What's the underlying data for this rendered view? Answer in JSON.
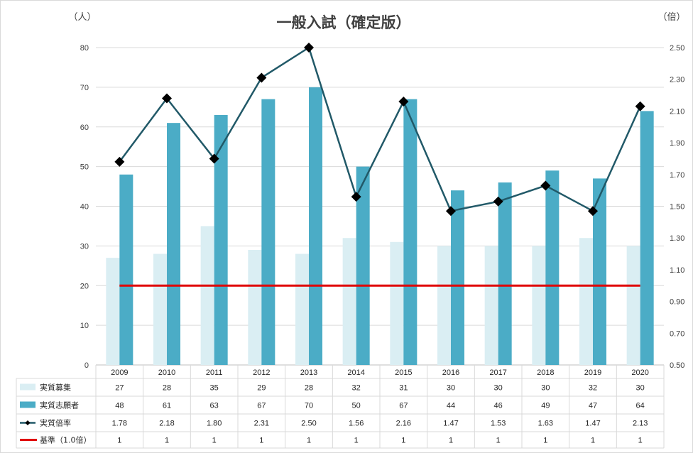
{
  "chart_data": {
    "type": "bar",
    "title": "一般入試（確定版）",
    "left_axis_unit": "（人）",
    "right_axis_unit": "（倍）",
    "categories": [
      "2009",
      "2010",
      "2011",
      "2012",
      "2013",
      "2014",
      "2015",
      "2016",
      "2017",
      "2018",
      "2019",
      "2020"
    ],
    "ylim": [
      0,
      80
    ],
    "y_ticks": [
      "0",
      "10",
      "20",
      "30",
      "40",
      "50",
      "60",
      "70",
      "80"
    ],
    "y2lim": [
      0.5,
      2.5
    ],
    "y2_ticks": [
      "0.50",
      "0.70",
      "0.90",
      "1.10",
      "1.30",
      "1.50",
      "1.70",
      "1.90",
      "2.10",
      "2.30",
      "2.50"
    ],
    "grid": true,
    "legend": "data-table",
    "series": [
      {
        "name": "実質募集",
        "kind": "bar",
        "axis": "left",
        "color": "#daeef3",
        "values": [
          27,
          28,
          35,
          29,
          28,
          32,
          31,
          30,
          30,
          30,
          32,
          30
        ],
        "labels": [
          "27",
          "28",
          "35",
          "29",
          "28",
          "32",
          "31",
          "30",
          "30",
          "30",
          "32",
          "30"
        ]
      },
      {
        "name": "実質志願者",
        "kind": "bar",
        "axis": "left",
        "color": "#4bacc6",
        "values": [
          48,
          61,
          63,
          67,
          70,
          50,
          67,
          44,
          46,
          49,
          47,
          64
        ],
        "labels": [
          "48",
          "61",
          "63",
          "67",
          "70",
          "50",
          "67",
          "44",
          "46",
          "49",
          "47",
          "64"
        ]
      },
      {
        "name": "実質倍率",
        "kind": "line",
        "axis": "right",
        "color": "#215968",
        "marker": "diamond",
        "values": [
          1.78,
          2.18,
          1.8,
          2.31,
          2.5,
          1.56,
          2.16,
          1.47,
          1.53,
          1.63,
          1.47,
          2.13
        ],
        "labels": [
          "1.78",
          "2.18",
          "1.80",
          "2.31",
          "2.50",
          "1.56",
          "2.16",
          "1.47",
          "1.53",
          "1.63",
          "1.47",
          "2.13"
        ]
      },
      {
        "name": "基準（1.0倍）",
        "kind": "line",
        "axis": "right",
        "color": "#e00000",
        "values": [
          1,
          1,
          1,
          1,
          1,
          1,
          1,
          1,
          1,
          1,
          1,
          1
        ],
        "labels": [
          "1",
          "1",
          "1",
          "1",
          "1",
          "1",
          "1",
          "1",
          "1",
          "1",
          "1",
          "1"
        ]
      }
    ]
  }
}
